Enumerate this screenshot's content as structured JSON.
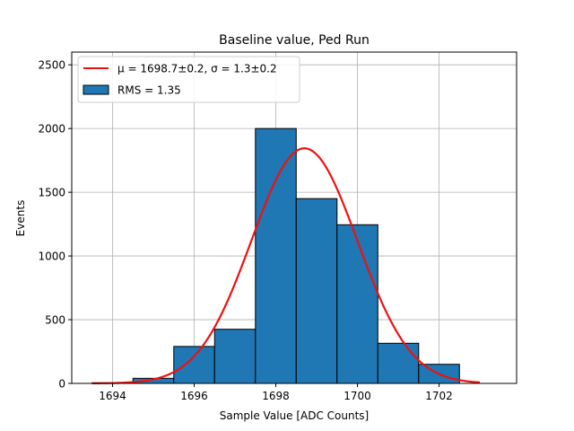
{
  "chart_data": {
    "type": "bar",
    "title": "Baseline value, Ped Run",
    "xlabel": "Sample Value [ADC Counts]",
    "ylabel": "Events",
    "xlim": [
      1693,
      1703.9
    ],
    "ylim": [
      0,
      2600
    ],
    "xticks": [
      1694,
      1696,
      1698,
      1700,
      1702
    ],
    "yticks": [
      0,
      500,
      1000,
      1500,
      2000,
      2500
    ],
    "grid": true,
    "legend_position": "top-left",
    "bins": [
      {
        "x0": 1693.5,
        "x1": 1694.5,
        "value": 5
      },
      {
        "x0": 1694.5,
        "x1": 1695.5,
        "value": 40
      },
      {
        "x0": 1695.5,
        "x1": 1696.5,
        "value": 290
      },
      {
        "x0": 1696.5,
        "x1": 1697.5,
        "value": 425
      },
      {
        "x0": 1697.5,
        "x1": 1698.5,
        "value": 2000
      },
      {
        "x0": 1698.5,
        "x1": 1699.5,
        "value": 1450
      },
      {
        "x0": 1699.5,
        "x1": 1700.5,
        "value": 1245
      },
      {
        "x0": 1700.5,
        "x1": 1701.5,
        "value": 315
      },
      {
        "x0": 1701.5,
        "x1": 1702.5,
        "value": 150
      }
    ],
    "fit": {
      "mu": 1698.7,
      "sigma": 1.3,
      "amplitude": 1845,
      "x_range": [
        1693.5,
        1703
      ]
    },
    "legend": {
      "fit_label": "μ = 1698.7±0.2, σ = 1.3±0.2",
      "hist_label": "RMS = 1.35"
    },
    "colors": {
      "bar": "#1f77b4",
      "bar_edge": "#000000",
      "fit": "#ee1111",
      "grid": "#b0b0b0"
    }
  }
}
